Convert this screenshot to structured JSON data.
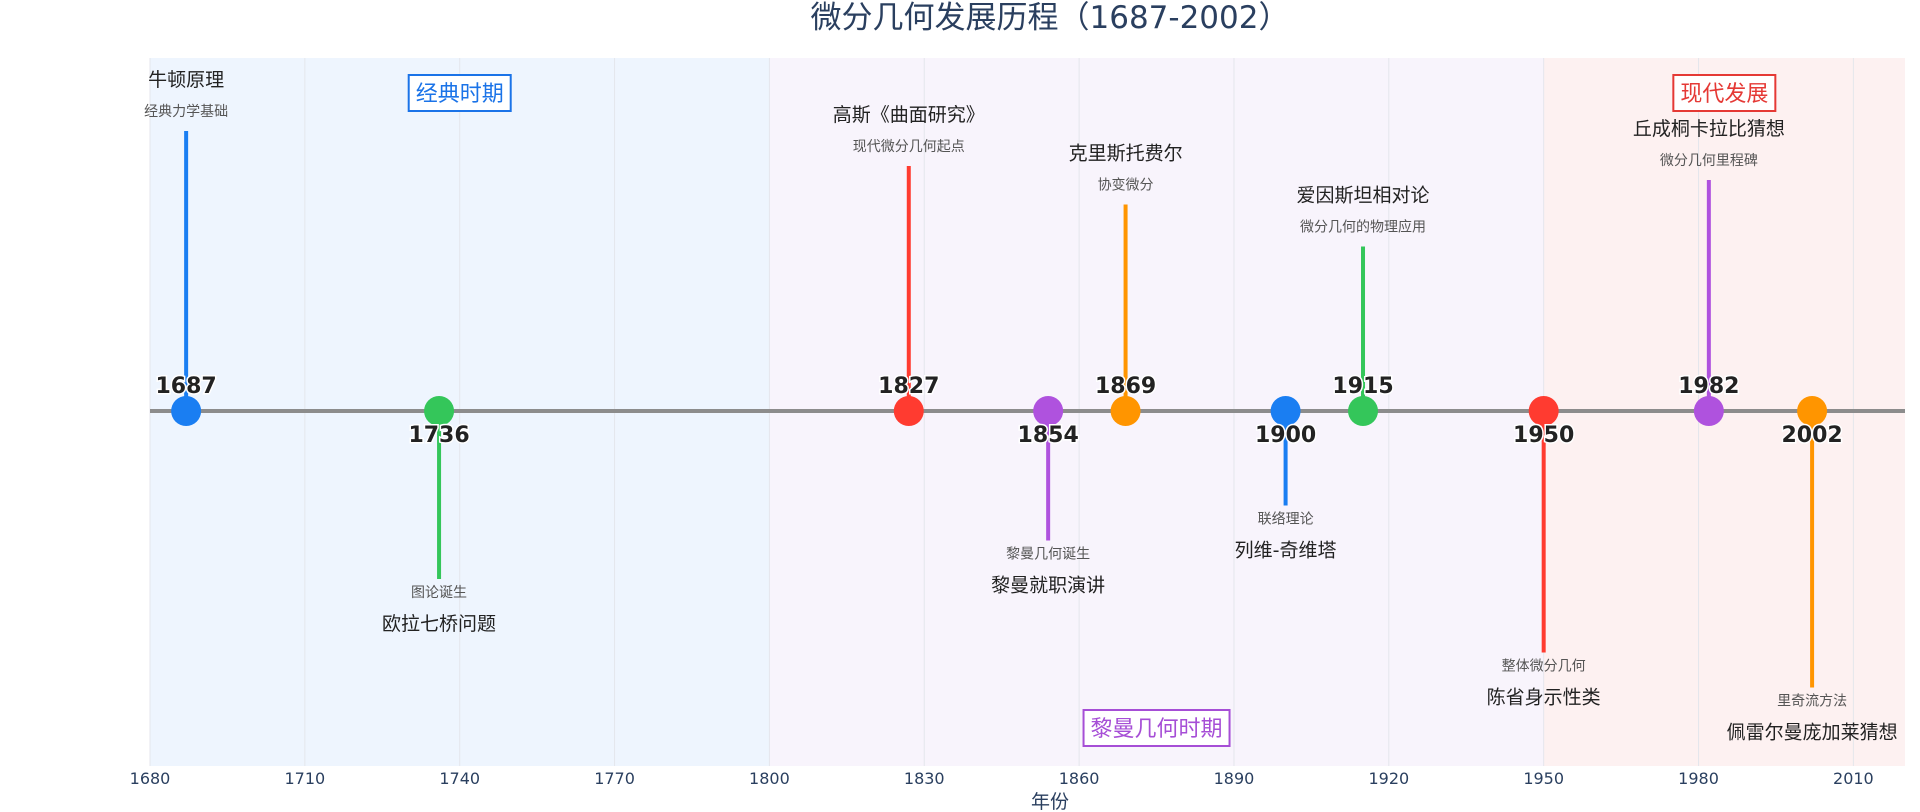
{
  "chart_data": {
    "type": "timeline",
    "title": "微分几何发展历程（1687-2002）",
    "xlabel": "年份",
    "xlim": [
      1680,
      2020
    ],
    "x_ticks": [
      1680,
      1710,
      1740,
      1770,
      1800,
      1830,
      1860,
      1890,
      1920,
      1950,
      1980,
      2010
    ],
    "periods": [
      {
        "label": "经典时期",
        "start": 1680,
        "end": 1800,
        "color": "#1a73e8",
        "fill": "#eef5fe",
        "label_position": "top"
      },
      {
        "label": "黎曼几何时期",
        "start": 1800,
        "end": 1950,
        "color": "#a64ed6",
        "fill": "#f8f4fc",
        "label_position": "bottom"
      },
      {
        "label": "现代发展",
        "start": 1950,
        "end": 2020,
        "color": "#e53935",
        "fill": "#fdf1f1",
        "label_position": "top"
      }
    ],
    "events": [
      {
        "year": 1687,
        "title": "牛顿原理",
        "subtitle": "经典力学基础",
        "color": "#1a7ef2",
        "side": "up",
        "level": 0.8
      },
      {
        "year": 1736,
        "title": "欧拉七桥问题",
        "subtitle": "图论诞生",
        "color": "#34c65a",
        "side": "down",
        "level": 0.48
      },
      {
        "year": 1827,
        "title": "高斯《曲面研究》",
        "subtitle": "现代微分几何起点",
        "color": "#ff3b30",
        "side": "up",
        "level": 0.7
      },
      {
        "year": 1854,
        "title": "黎曼就职演讲",
        "subtitle": "黎曼几何诞生",
        "color": "#af52de",
        "side": "down",
        "level": 0.37
      },
      {
        "year": 1869,
        "title": "克里斯托费尔",
        "subtitle": "协变微分",
        "color": "#ff9500",
        "side": "up",
        "level": 0.59
      },
      {
        "year": 1900,
        "title": "列维-奇维塔",
        "subtitle": "联络理论",
        "color": "#1a7ef2",
        "side": "down",
        "level": 0.27
      },
      {
        "year": 1915,
        "title": "爱因斯坦相对论",
        "subtitle": "微分几何的物理应用",
        "color": "#34c65a",
        "side": "up",
        "level": 0.47
      },
      {
        "year": 1950,
        "title": "陈省身示性类",
        "subtitle": "整体微分几何",
        "color": "#ff3b30",
        "side": "down",
        "level": 0.69
      },
      {
        "year": 1982,
        "title": "丘成桐卡拉比猜想",
        "subtitle": "微分几何里程碑",
        "color": "#af52de",
        "side": "up",
        "level": 0.66
      },
      {
        "year": 2002,
        "title": "佩雷尔曼庞加莱猜想",
        "subtitle": "里奇流方法",
        "color": "#ff9500",
        "side": "down",
        "level": 0.79
      }
    ],
    "axis_line_color": "#8c8c8c",
    "grid": true
  }
}
